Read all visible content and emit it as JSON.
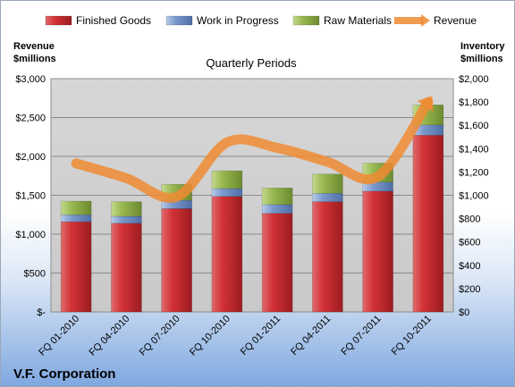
{
  "chart_data": {
    "type": "bar",
    "title": "V.F. Corporation",
    "subtitle": "Quarterly Periods",
    "categories": [
      "FQ 01-2010",
      "FQ 04-2010",
      "FQ 07-2010",
      "FQ 10-2010",
      "FQ 01-2011",
      "FQ 04-2011",
      "FQ 07-2011",
      "FQ 10-2011"
    ],
    "stacked": true,
    "series": [
      {
        "name": "Finished Goods",
        "axis": "right",
        "color": "#c0282d",
        "values": [
          773,
          760,
          885,
          990,
          845,
          945,
          1035,
          1515
        ]
      },
      {
        "name": "Work in Progress",
        "axis": "right",
        "color": "#7292c7",
        "values": [
          60,
          60,
          72,
          68,
          75,
          72,
          78,
          88
        ]
      },
      {
        "name": "Raw Materials",
        "axis": "right",
        "color": "#90b04a",
        "values": [
          117,
          125,
          137,
          152,
          143,
          165,
          163,
          172
        ]
      }
    ],
    "line_series": [
      {
        "name": "Revenue",
        "axis": "left",
        "color": "#f08b32",
        "values": [
          1910,
          1720,
          1480,
          2180,
          2110,
          1930,
          1740,
          2700
        ]
      }
    ],
    "left_axis": {
      "label_line1": "Revenue",
      "label_line2": "$millions",
      "ylim": [
        0,
        3000
      ],
      "ticks": [
        "$-",
        "$500",
        "$1,000",
        "$1,500",
        "$2,000",
        "$2,500",
        "$3,000"
      ]
    },
    "right_axis": {
      "label_line1": "Inventory",
      "label_line2": "$millions",
      "ylim": [
        0,
        2000
      ],
      "ticks": [
        "$0",
        "$200",
        "$400",
        "$600",
        "$800",
        "$1,000",
        "$1,200",
        "$1,400",
        "$1,600",
        "$1,800",
        "$2,000"
      ]
    },
    "grid": true,
    "legend_position": "top"
  }
}
